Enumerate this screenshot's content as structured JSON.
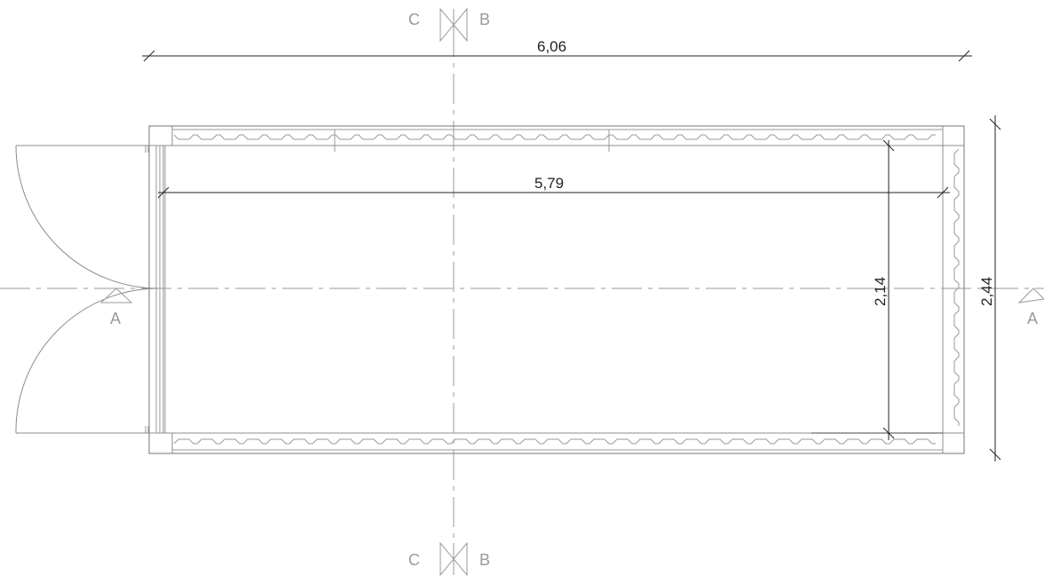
{
  "dimensions": {
    "outer_length": "6,06",
    "inner_length": "5,79",
    "inner_width": "2,14",
    "outer_width": "2,44"
  },
  "section_marks": {
    "a_left": "A",
    "a_right": "A",
    "c_top": "C",
    "b_top": "B",
    "c_bottom": "C",
    "b_bottom": "B"
  },
  "colors": {
    "dimension_line": "#222222",
    "outline": "#8c8c8c",
    "axis": "#9a9a9a"
  }
}
